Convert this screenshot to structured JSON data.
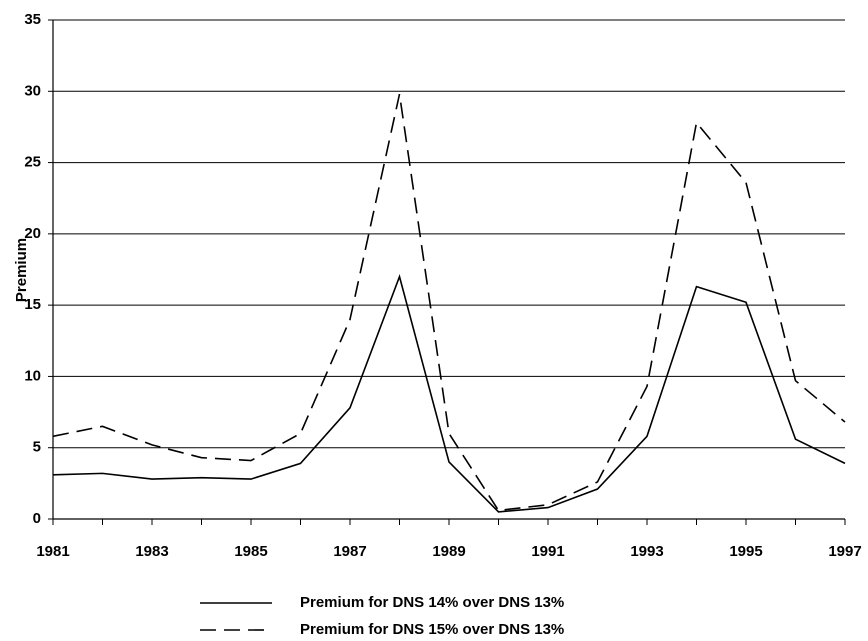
{
  "chart_data": {
    "type": "line",
    "y_label": "Premium",
    "x": [
      1981,
      1982,
      1983,
      1984,
      1985,
      1986,
      1987,
      1988,
      1989,
      1990,
      1991,
      1992,
      1993,
      1994,
      1995,
      1996,
      1997
    ],
    "series": [
      {
        "name": "Premium for DNS 14% over DNS 13%",
        "color": "#000000",
        "dash": "solid",
        "values": [
          3.1,
          3.2,
          2.8,
          2.9,
          2.8,
          3.9,
          7.8,
          17.0,
          4.0,
          0.5,
          0.8,
          2.1,
          5.8,
          16.3,
          15.2,
          5.6,
          3.9
        ]
      },
      {
        "name": "Premium for DNS 15% over DNS 13%",
        "color": "#000000",
        "dash": "dashed",
        "values": [
          5.8,
          6.5,
          5.2,
          4.3,
          4.1,
          6.0,
          14.0,
          29.8,
          6.0,
          0.6,
          1.0,
          2.6,
          9.3,
          27.8,
          23.6,
          9.7,
          6.8
        ]
      }
    ],
    "xlim": [
      1981,
      1997
    ],
    "xticks": [
      1981,
      1983,
      1985,
      1987,
      1989,
      1991,
      1993,
      1995,
      1997
    ],
    "ylim": [
      0,
      35
    ],
    "yticks": [
      0,
      5,
      10,
      15,
      20,
      25,
      30,
      35
    ],
    "grid": true,
    "legend": "bottom"
  }
}
